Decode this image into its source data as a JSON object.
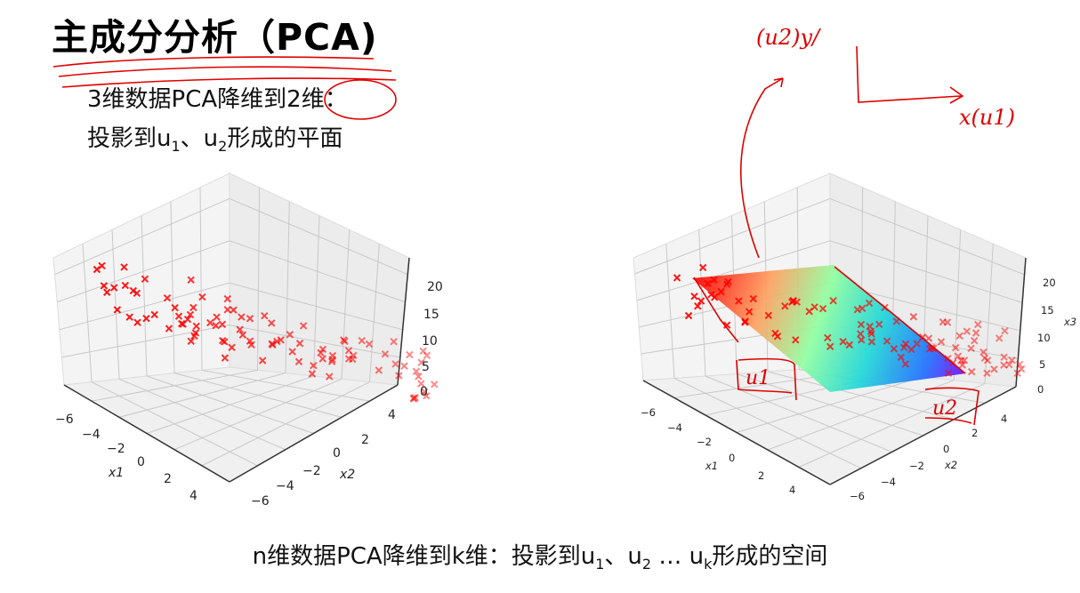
{
  "slide": {
    "title": "主成分分析（PCA)",
    "line1": "3维数据PCA降维到2维：",
    "line2_prefix": "投影到u",
    "line2_sub1": "1",
    "line2_mid": "、u",
    "line2_sub2": "2",
    "line2_suffix": "形成的平面",
    "bottom_prefix": "n维数据PCA降维到k维：投影到u",
    "bottom_sub1": "1",
    "bottom_mid1": "、u",
    "bottom_sub2": "2",
    "bottom_mid2": " … u",
    "bottom_subk": "k",
    "bottom_suffix": "形成的空间"
  },
  "left_plot": {
    "x1_label": "x1",
    "x2_label": "x2",
    "x1_ticks": [
      "−6",
      "−4",
      "−2",
      "0",
      "2",
      "4"
    ],
    "x2_ticks": [
      "4",
      "2",
      "0",
      "−2",
      "−4",
      "−6"
    ],
    "z_ticks": [
      "20",
      "15",
      "10",
      "5",
      "0"
    ],
    "marker_color": "#ff0000"
  },
  "right_plot": {
    "x1_label": "x1",
    "x2_label": "x2",
    "z_label": "x3",
    "x1_ticks": [
      "−6",
      "−4",
      "−2",
      "0",
      "2",
      "4"
    ],
    "x2_ticks": [
      "4",
      "2",
      "0",
      "−2",
      "−4",
      "−6"
    ],
    "z_ticks": [
      "20",
      "15",
      "10",
      "5",
      "0"
    ],
    "surface_colormap": [
      "#ff0000",
      "#ffa060",
      "#80ffb0",
      "#20d0e0",
      "#2070ff",
      "#8000ff"
    ],
    "marker_color": "#ff0000"
  },
  "annotations": {
    "y_axis_note": "(u2)y/",
    "x_axis_note": "x(u1)",
    "u1_box": "u1",
    "u2_box": "u2",
    "ink_color": "#e00000"
  }
}
